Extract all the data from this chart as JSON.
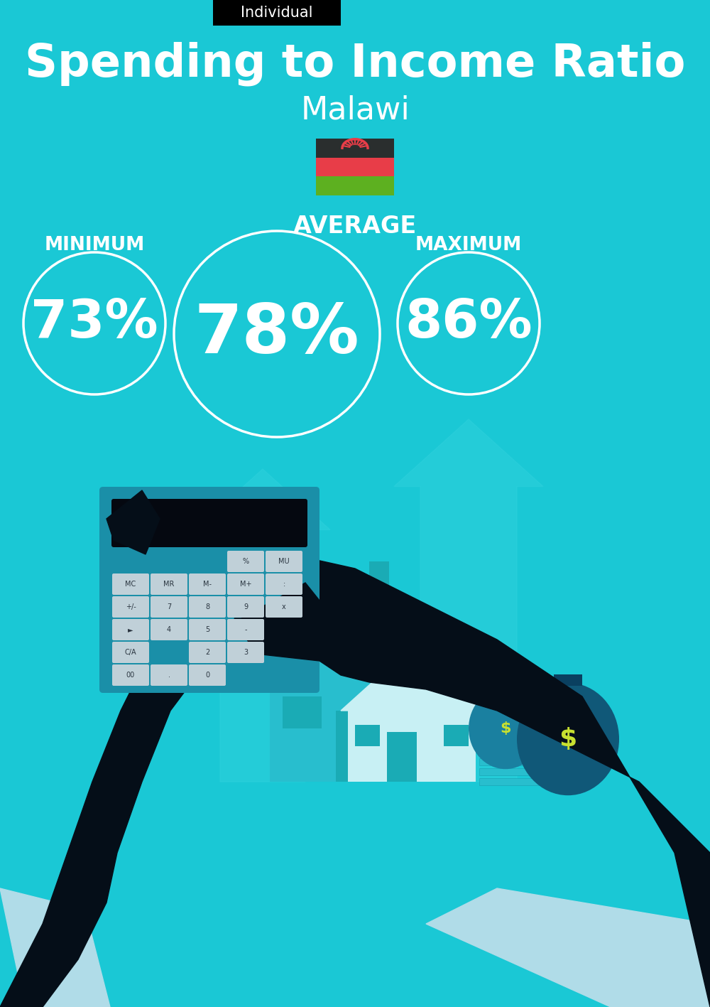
{
  "bg_color": "#1ac8d5",
  "title": "Spending to Income Ratio",
  "subtitle": "Malawi",
  "tag_text": "Individual",
  "tag_bg": "#000000",
  "tag_text_color": "#ffffff",
  "avg_label": "AVERAGE",
  "min_label": "MINIMUM",
  "max_label": "MAXIMUM",
  "min_value": "73%",
  "avg_value": "78%",
  "max_value": "86%",
  "circle_color": "#ffffff",
  "text_color": "#ffffff",
  "title_fontsize": 46,
  "subtitle_fontsize": 32,
  "avg_value_fontsize": 70,
  "side_value_fontsize": 54,
  "label_fontsize": 19,
  "avg_label_fontsize": 24,
  "tag_fontsize": 15,
  "flag_stripe_colors": [
    "#2a2e2e",
    "#e83d48",
    "#5db020"
  ],
  "arrow_color": "#2dd0dc",
  "hand_color": "#050e18",
  "calc_body_color": "#1a8fa8",
  "calc_screen_color": "#050810",
  "btn_color": "#c0d0d8",
  "house_color": "#28bece",
  "house_dark": "#1aabb5",
  "money_bag_color1": "#1a80a0",
  "money_bag_color2": "#105878",
  "dollar_color": "#c8e030",
  "cuff_color": "#b0dce8"
}
